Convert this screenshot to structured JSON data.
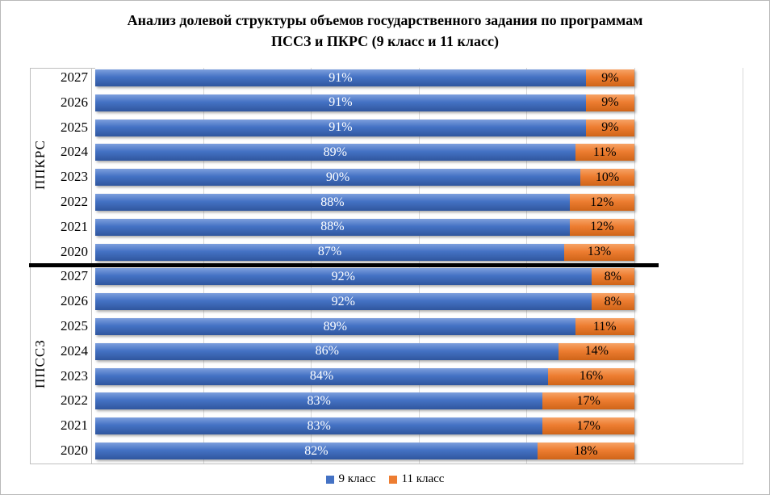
{
  "title": {
    "full": "Анализ долевой структуры объемов государственного задания по программам ПССЗ и ПКРС (9 класс и 11 класс)",
    "line1": "Анализ долевой структуры объемов государственного задания по программам",
    "line2": "ПССЗ и ПКРС (9 класс и 11 класс)"
  },
  "legend": {
    "position": "bottom-center",
    "items": [
      {
        "label": "9 класс",
        "color": "#4472C4"
      },
      {
        "label": "11 класс",
        "color": "#ED7D31"
      }
    ]
  },
  "colors": {
    "blue": "#4472C4",
    "orange": "#ED7D31",
    "gridline": "#D9D9D9",
    "axis_line": "#BFBFBF",
    "group_divider": "#000000",
    "label_on_blue": "#FFFFFF",
    "label_on_orange": "#000000"
  },
  "chart_data": {
    "type": "bar",
    "orientation": "horizontal",
    "stacked": true,
    "percent_scale": true,
    "title": "Анализ долевой структуры объемов государственного задания по программам ПССЗ и ПКРС (9 класс и 11 класс)",
    "x_axis": {
      "min": 0,
      "max": 120,
      "gridline_step": 20,
      "unit": "%",
      "tick_labels_visible": false,
      "grid": true
    },
    "value_label_format": "{value}%",
    "groups": [
      {
        "label": "ППКРС",
        "categories": [
          "2027",
          "2026",
          "2025",
          "2024",
          "2023",
          "2022",
          "2021",
          "2020"
        ],
        "series": [
          {
            "name": "9 класс",
            "color": "#4472C4",
            "values": [
              91,
              91,
              91,
              89,
              90,
              88,
              88,
              87
            ]
          },
          {
            "name": "11 класс",
            "color": "#ED7D31",
            "values": [
              9,
              9,
              9,
              11,
              10,
              12,
              12,
              13
            ]
          }
        ]
      },
      {
        "label": "ППССЗ",
        "categories": [
          "2027",
          "2026",
          "2025",
          "2024",
          "2023",
          "2022",
          "2021",
          "2020"
        ],
        "series": [
          {
            "name": "9 класс",
            "color": "#4472C4",
            "values": [
              92,
              92,
              89,
              86,
              84,
              83,
              83,
              82
            ]
          },
          {
            "name": "11 класс",
            "color": "#ED7D31",
            "values": [
              8,
              8,
              11,
              14,
              16,
              17,
              17,
              18
            ]
          }
        ]
      }
    ]
  }
}
